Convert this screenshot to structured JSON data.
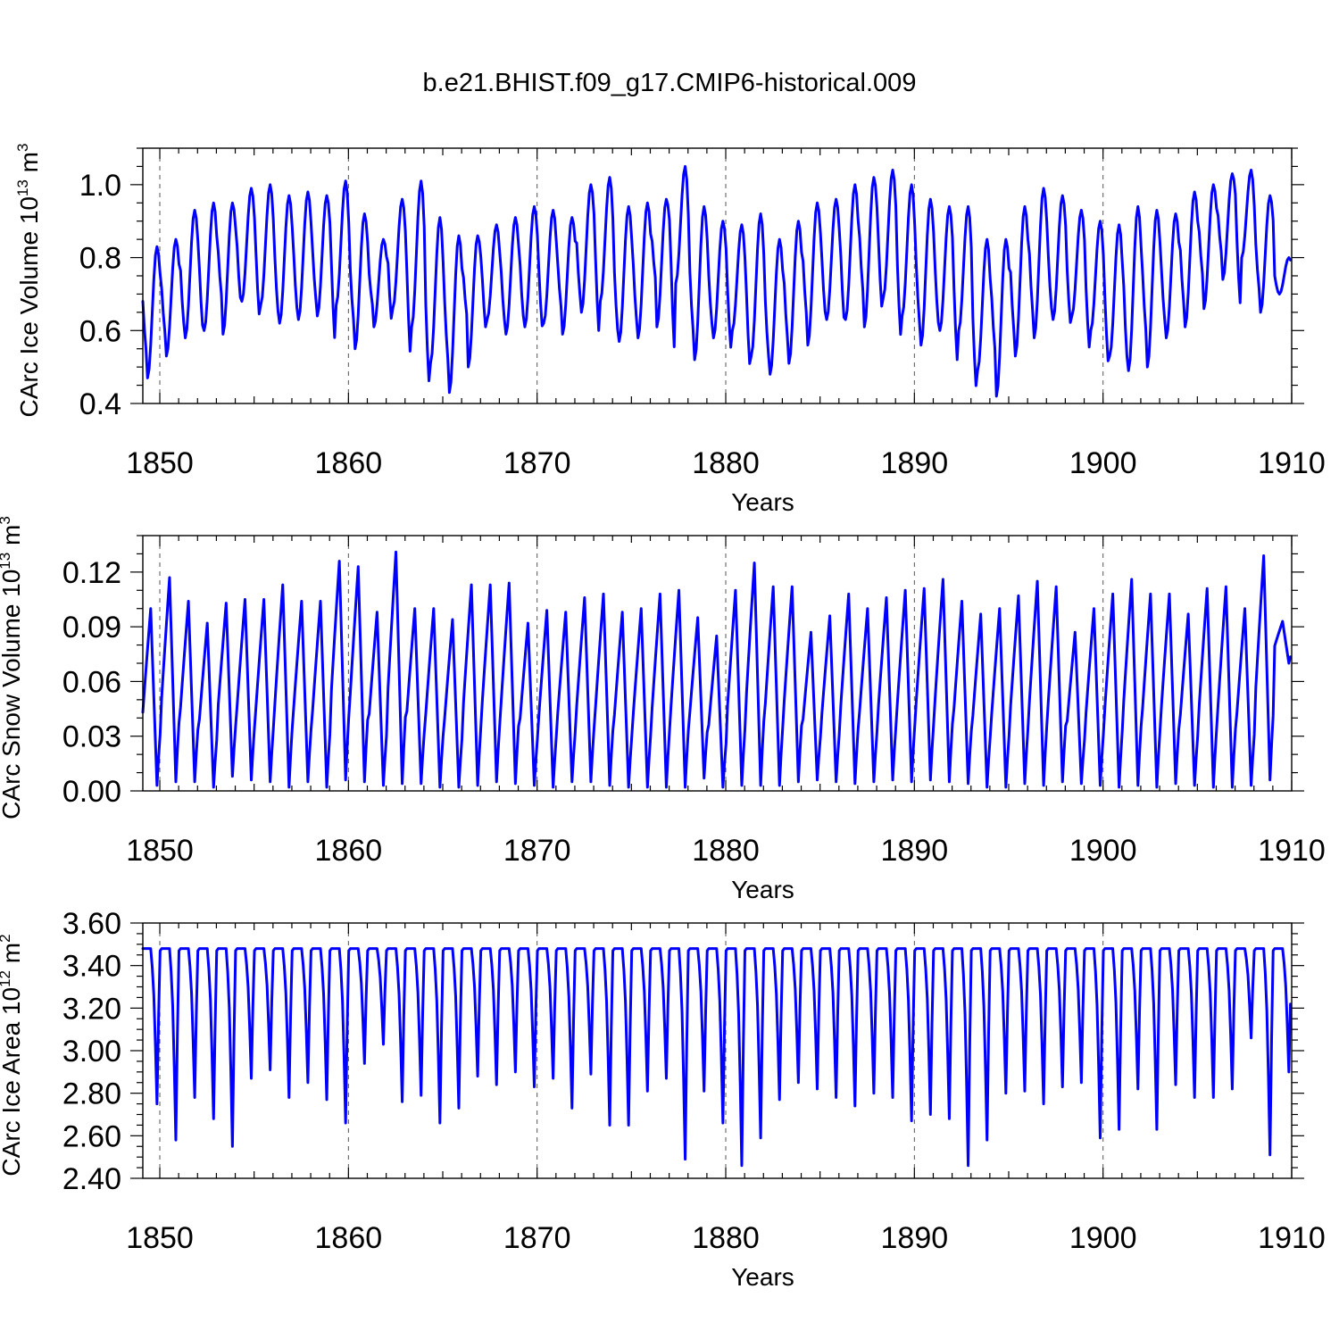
{
  "figure_title": "b.e21.BHIST.f09_g17.CMIP6-historical.009",
  "colors": {
    "line": "#0000ff",
    "grid": "#555555",
    "frame": "#000000",
    "background": "#ffffff"
  },
  "chart_data": [
    {
      "type": "line",
      "series_name": "CArc Ice Volume",
      "ylabel_main": "CArc Ice Volume 10",
      "ylabel_exp": "13",
      "ylabel_unit": " m",
      "ylabel_unit_exp": "3",
      "xlabel": "Years",
      "xlim": [
        1849.1,
        1910.0
      ],
      "ylim": [
        0.4,
        1.1
      ],
      "xticks": [
        1850,
        1860,
        1870,
        1880,
        1890,
        1900,
        1910
      ],
      "xtick_labels": [
        "1850",
        "1860",
        "1870",
        "1880",
        "1890",
        "1900",
        "1910"
      ],
      "yticks": [
        0.4,
        0.6,
        0.8,
        1.0
      ],
      "ytick_labels": [
        "0.4",
        "0.6",
        "0.8",
        "1.0"
      ],
      "yminor_step": 0.05,
      "grid": "x-dashed",
      "seasonal": {
        "min_month": 3,
        "max_month": 9,
        "shape": "smooth"
      },
      "annual_max": [
        0.83,
        0.85,
        0.93,
        0.95,
        0.95,
        0.99,
        1.0,
        0.97,
        0.98,
        0.97,
        1.01,
        0.92,
        0.85,
        0.96,
        1.01,
        0.91,
        0.86,
        0.86,
        0.89,
        0.91,
        0.94,
        0.93,
        0.91,
        1.0,
        1.02,
        0.94,
        0.95,
        0.96,
        1.05,
        0.94,
        0.9,
        0.89,
        0.92,
        0.85,
        0.9,
        0.95,
        0.96,
        1.0,
        1.02,
        1.04,
        1.0,
        0.96,
        0.94,
        0.94,
        0.85,
        0.85,
        0.94,
        0.99,
        0.97,
        0.93,
        0.9,
        0.89,
        0.94,
        0.93,
        0.92,
        0.98,
        1.0,
        1.03,
        1.04,
        0.97,
        0.8
      ],
      "annual_min": [
        0.47,
        0.53,
        0.58,
        0.6,
        0.59,
        0.68,
        0.67,
        0.62,
        0.63,
        0.64,
        0.67,
        0.55,
        0.61,
        0.66,
        0.61,
        0.51,
        0.43,
        0.5,
        0.63,
        0.59,
        0.61,
        0.62,
        0.59,
        0.65,
        0.68,
        0.57,
        0.58,
        0.61,
        0.73,
        0.52,
        0.58,
        0.6,
        0.53,
        0.48,
        0.51,
        0.56,
        0.63,
        0.63,
        0.61,
        0.69,
        0.64,
        0.56,
        0.6,
        0.6,
        0.49,
        0.42,
        0.53,
        0.58,
        0.63,
        0.64,
        0.6,
        0.53,
        0.49,
        0.5,
        0.58,
        0.61,
        0.66,
        0.74,
        0.8,
        0.65,
        0.7
      ]
    },
    {
      "type": "line",
      "series_name": "CArc Snow Volume",
      "ylabel_main": "CArc Snow Volume 10",
      "ylabel_exp": "13",
      "ylabel_unit": " m",
      "ylabel_unit_exp": "3",
      "xlabel": "Years",
      "xlim": [
        1849.1,
        1910.0
      ],
      "ylim": [
        0.0,
        0.14
      ],
      "xticks": [
        1850,
        1860,
        1870,
        1880,
        1890,
        1900,
        1910
      ],
      "xtick_labels": [
        "1850",
        "1860",
        "1870",
        "1880",
        "1890",
        "1900",
        "1910"
      ],
      "yticks": [
        0.0,
        0.03,
        0.06,
        0.09,
        0.12
      ],
      "ytick_labels": [
        "0.00",
        "0.03",
        "0.06",
        "0.09",
        "0.12"
      ],
      "yminor_step": 0.01,
      "grid": "x-dashed",
      "seasonal": {
        "min_month": 9,
        "max_month": 5,
        "shape": "sawtooth"
      },
      "annual_max": [
        0.1,
        0.117,
        0.104,
        0.092,
        0.103,
        0.105,
        0.105,
        0.113,
        0.104,
        0.104,
        0.126,
        0.123,
        0.098,
        0.131,
        0.1,
        0.1,
        0.094,
        0.113,
        0.113,
        0.114,
        0.092,
        0.099,
        0.098,
        0.106,
        0.108,
        0.098,
        0.1,
        0.108,
        0.11,
        0.095,
        0.085,
        0.11,
        0.125,
        0.112,
        0.112,
        0.087,
        0.096,
        0.108,
        0.1,
        0.106,
        0.11,
        0.111,
        0.116,
        0.104,
        0.097,
        0.1,
        0.107,
        0.115,
        0.112,
        0.087,
        0.1,
        0.108,
        0.116,
        0.108,
        0.108,
        0.097,
        0.111,
        0.112,
        0.1,
        0.129,
        0.093
      ],
      "annual_min": [
        0.003,
        0.005,
        0.005,
        0.002,
        0.008,
        0.006,
        0.005,
        0.002,
        0.005,
        0.002,
        0.006,
        0.005,
        0.003,
        0.004,
        0.004,
        0.002,
        0.002,
        0.003,
        0.005,
        0.004,
        0.003,
        0.002,
        0.005,
        0.005,
        0.003,
        0.002,
        0.002,
        0.002,
        0.002,
        0.007,
        0.002,
        0.003,
        0.003,
        0.003,
        0.005,
        0.006,
        0.005,
        0.004,
        0.005,
        0.006,
        0.005,
        0.006,
        0.005,
        0.004,
        0.002,
        0.002,
        0.004,
        0.003,
        0.005,
        0.004,
        0.003,
        0.002,
        0.003,
        0.002,
        0.004,
        0.003,
        0.002,
        0.002,
        0.003,
        0.006,
        0.07
      ]
    },
    {
      "type": "line",
      "series_name": "CArc Ice Area",
      "ylabel_main": "CArc Ice Area 10",
      "ylabel_exp": "12",
      "ylabel_unit": " m",
      "ylabel_unit_exp": "2",
      "xlabel": "Years",
      "xlim": [
        1849.1,
        1910.0
      ],
      "ylim": [
        2.4,
        3.6
      ],
      "xticks": [
        1850,
        1860,
        1870,
        1880,
        1890,
        1900,
        1910
      ],
      "xtick_labels": [
        "1850",
        "1860",
        "1870",
        "1880",
        "1890",
        "1900",
        "1910"
      ],
      "yticks": [
        2.4,
        2.6,
        2.8,
        3.0,
        3.2,
        3.4,
        3.6
      ],
      "ytick_labels": [
        "2.40",
        "2.60",
        "2.80",
        "3.00",
        "3.20",
        "3.40",
        "3.60"
      ],
      "yminor_step": 0.05,
      "grid": "x-dashed",
      "seasonal": {
        "min_month": 9,
        "max_month": 3,
        "shape": "plateau"
      },
      "annual_max": [
        3.48,
        3.48,
        3.48,
        3.48,
        3.48,
        3.48,
        3.48,
        3.48,
        3.48,
        3.48,
        3.48,
        3.48,
        3.48,
        3.48,
        3.48,
        3.48,
        3.48,
        3.48,
        3.48,
        3.48,
        3.48,
        3.48,
        3.48,
        3.48,
        3.48,
        3.48,
        3.48,
        3.48,
        3.48,
        3.48,
        3.48,
        3.48,
        3.48,
        3.48,
        3.48,
        3.48,
        3.48,
        3.48,
        3.48,
        3.48,
        3.48,
        3.48,
        3.48,
        3.48,
        3.48,
        3.48,
        3.48,
        3.48,
        3.48,
        3.48,
        3.48,
        3.48,
        3.48,
        3.48,
        3.48,
        3.48,
        3.48,
        3.48,
        3.48,
        3.48,
        3.48
      ],
      "annual_min": [
        2.75,
        2.58,
        2.78,
        2.68,
        2.55,
        2.87,
        2.91,
        2.78,
        2.85,
        2.77,
        2.66,
        2.94,
        3.03,
        2.76,
        2.79,
        2.66,
        2.73,
        2.88,
        2.84,
        2.9,
        2.83,
        2.87,
        2.73,
        2.89,
        2.65,
        2.65,
        2.81,
        2.87,
        2.49,
        2.81,
        2.66,
        2.46,
        2.59,
        2.77,
        2.85,
        2.82,
        2.78,
        2.74,
        2.8,
        2.78,
        2.67,
        2.7,
        2.68,
        2.46,
        2.58,
        2.8,
        2.81,
        2.75,
        2.83,
        2.85,
        2.59,
        2.63,
        2.82,
        2.63,
        2.84,
        2.78,
        2.78,
        2.82,
        3.06,
        2.51,
        2.9
      ]
    }
  ]
}
